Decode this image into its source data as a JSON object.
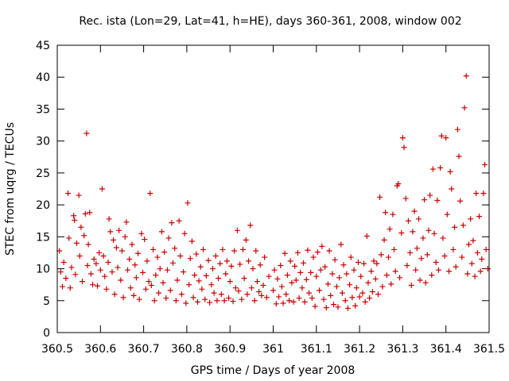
{
  "chart_data": {
    "type": "scatter",
    "title": "Rec. ista (Lon=29, Lat=41, h=HE), days 360-361, 2008, window 002",
    "xlabel": "GPS time / Days of year 2008",
    "ylabel": "STEC from uqrg / TECUs",
    "xlim": [
      360.5,
      361.5
    ],
    "ylim": [
      0,
      45
    ],
    "xticks": [
      "360.5",
      "360.6",
      "360.7",
      "360.8",
      "360.9",
      "361",
      "361.1",
      "361.2",
      "361.3",
      "361.4",
      "361.5"
    ],
    "yticks": [
      "0",
      "5",
      "10",
      "15",
      "20",
      "25",
      "30",
      "35",
      "40",
      "45"
    ],
    "grid": false,
    "legend": "none",
    "marker": "plus",
    "color": "#cc0000",
    "series": [
      {
        "points": [
          [
            360.505,
            12.8
          ],
          [
            360.508,
            9.5
          ],
          [
            360.512,
            7.2
          ],
          [
            360.515,
            11.0
          ],
          [
            360.52,
            8.5
          ],
          [
            360.525,
            21.8
          ],
          [
            360.527,
            14.8
          ],
          [
            360.53,
            7.0
          ],
          [
            360.533,
            10.2
          ],
          [
            360.538,
            18.3
          ],
          [
            360.54,
            17.6
          ],
          [
            360.542,
            9.1
          ],
          [
            360.545,
            14.0
          ],
          [
            360.55,
            21.5
          ],
          [
            360.552,
            12.0
          ],
          [
            360.555,
            16.5
          ],
          [
            360.558,
            8.0
          ],
          [
            360.562,
            15.2
          ],
          [
            360.565,
            18.6
          ],
          [
            360.568,
            31.2
          ],
          [
            360.57,
            10.5
          ],
          [
            360.572,
            13.8
          ],
          [
            360.575,
            18.8
          ],
          [
            360.578,
            9.2
          ],
          [
            360.582,
            7.5
          ],
          [
            360.585,
            11.5
          ],
          [
            360.59,
            10.8
          ],
          [
            360.593,
            7.3
          ],
          [
            360.597,
            12.5
          ],
          [
            360.6,
            9.8
          ],
          [
            360.604,
            22.5
          ],
          [
            360.607,
            12.0
          ],
          [
            360.61,
            8.8
          ],
          [
            360.614,
            6.8
          ],
          [
            360.618,
            11.0
          ],
          [
            360.62,
            17.8
          ],
          [
            360.623,
            15.8
          ],
          [
            360.627,
            9.5
          ],
          [
            360.63,
            14.5
          ],
          [
            360.633,
            6.0
          ],
          [
            360.637,
            13.3
          ],
          [
            360.64,
            10.2
          ],
          [
            360.643,
            16.0
          ],
          [
            360.647,
            8.2
          ],
          [
            360.65,
            12.8
          ],
          [
            360.653,
            5.5
          ],
          [
            360.657,
            15.0
          ],
          [
            360.66,
            17.3
          ],
          [
            360.663,
            9.8
          ],
          [
            360.667,
            11.5
          ],
          [
            360.67,
            7.0
          ],
          [
            360.673,
            13.8
          ],
          [
            360.677,
            5.8
          ],
          [
            360.68,
            10.6
          ],
          [
            360.683,
            8.6
          ],
          [
            360.687,
            12.4
          ],
          [
            360.69,
            5.2
          ],
          [
            360.695,
            15.5
          ],
          [
            360.698,
            9.4
          ],
          [
            360.702,
            14.6
          ],
          [
            360.705,
            6.8
          ],
          [
            360.708,
            11.2
          ],
          [
            360.712,
            8.0
          ],
          [
            360.715,
            21.8
          ],
          [
            360.718,
            7.4
          ],
          [
            360.722,
            13.0
          ],
          [
            360.725,
            5.0
          ],
          [
            360.728,
            9.0
          ],
          [
            360.732,
            11.8
          ],
          [
            360.735,
            6.2
          ],
          [
            360.738,
            10.0
          ],
          [
            360.742,
            15.8
          ],
          [
            360.745,
            7.8
          ],
          [
            360.748,
            12.6
          ],
          [
            360.752,
            5.4
          ],
          [
            360.755,
            9.8
          ],
          [
            360.758,
            14.8
          ],
          [
            360.762,
            6.6
          ],
          [
            360.765,
            17.2
          ],
          [
            360.768,
            10.9
          ],
          [
            360.772,
            13.2
          ],
          [
            360.775,
            5.0
          ],
          [
            360.778,
            8.2
          ],
          [
            360.782,
            17.5
          ],
          [
            360.785,
            12.0
          ],
          [
            360.788,
            6.0
          ],
          [
            360.792,
            9.5
          ],
          [
            360.795,
            15.5
          ],
          [
            360.798,
            4.6
          ],
          [
            360.802,
            20.3
          ],
          [
            360.805,
            7.5
          ],
          [
            360.808,
            11.6
          ],
          [
            360.812,
            14.3
          ],
          [
            360.815,
            5.5
          ],
          [
            360.818,
            9.0
          ],
          [
            360.822,
            12.3
          ],
          [
            360.825,
            4.8
          ],
          [
            360.828,
            8.1
          ],
          [
            360.832,
            10.3
          ],
          [
            360.835,
            6.8
          ],
          [
            360.838,
            13.0
          ],
          [
            360.842,
            5.2
          ],
          [
            360.845,
            8.9
          ],
          [
            360.85,
            11.3
          ],
          [
            360.853,
            4.7
          ],
          [
            360.857,
            7.5
          ],
          [
            360.86,
            10.0
          ],
          [
            360.863,
            6.2
          ],
          [
            360.867,
            12.0
          ],
          [
            360.87,
            5.0
          ],
          [
            360.873,
            8.5
          ],
          [
            360.877,
            10.8
          ],
          [
            360.88,
            6.0
          ],
          [
            360.883,
            13.0
          ],
          [
            360.887,
            5.0
          ],
          [
            360.89,
            9.2
          ],
          [
            360.893,
            11.2
          ],
          [
            360.897,
            5.4
          ],
          [
            360.9,
            8.0
          ],
          [
            360.903,
            10.4
          ],
          [
            360.907,
            4.9
          ],
          [
            360.91,
            12.8
          ],
          [
            360.913,
            7.0
          ],
          [
            360.917,
            16.0
          ],
          [
            360.92,
            6.5
          ],
          [
            360.923,
            10.7
          ],
          [
            360.927,
            5.2
          ],
          [
            360.93,
            13.0
          ],
          [
            360.933,
            8.5
          ],
          [
            360.937,
            14.5
          ],
          [
            360.94,
            6.0
          ],
          [
            360.943,
            11.2
          ],
          [
            360.947,
            16.8
          ],
          [
            360.95,
            7.0
          ],
          [
            360.953,
            10.0
          ],
          [
            360.957,
            5.0
          ],
          [
            360.96,
            12.8
          ],
          [
            360.963,
            8.0
          ],
          [
            360.967,
            6.4
          ],
          [
            360.97,
            10.6
          ],
          [
            360.973,
            5.8
          ],
          [
            360.977,
            7.4
          ],
          [
            360.98,
            11.8
          ],
          [
            360.985,
            5.5
          ],
          [
            360.99,
            8.8
          ],
          [
            361.0,
            6.6
          ],
          [
            361.003,
            9.8
          ],
          [
            361.007,
            4.5
          ],
          [
            361.01,
            8.4
          ],
          [
            361.013,
            5.6
          ],
          [
            361.017,
            10.5
          ],
          [
            361.02,
            7.2
          ],
          [
            361.023,
            4.6
          ],
          [
            361.027,
            12.4
          ],
          [
            361.03,
            6.0
          ],
          [
            361.033,
            9.0
          ],
          [
            361.037,
            5.0
          ],
          [
            361.04,
            11.2
          ],
          [
            361.043,
            7.8
          ],
          [
            361.047,
            4.8
          ],
          [
            361.05,
            10.4
          ],
          [
            361.053,
            8.2
          ],
          [
            361.057,
            12.5
          ],
          [
            361.06,
            5.4
          ],
          [
            361.063,
            9.4
          ],
          [
            361.067,
            7.0
          ],
          [
            361.07,
            10.9
          ],
          [
            361.073,
            4.8
          ],
          [
            361.077,
            8.3
          ],
          [
            361.08,
            12.9
          ],
          [
            361.083,
            6.2
          ],
          [
            361.087,
            9.4
          ],
          [
            361.09,
            5.4
          ],
          [
            361.093,
            11.8
          ],
          [
            361.097,
            4.1
          ],
          [
            361.1,
            8.8
          ],
          [
            361.103,
            12.6
          ],
          [
            361.107,
            6.6
          ],
          [
            361.11,
            9.8
          ],
          [
            361.113,
            13.5
          ],
          [
            361.117,
            5.2
          ],
          [
            361.12,
            10.3
          ],
          [
            361.123,
            3.9
          ],
          [
            361.127,
            7.6
          ],
          [
            361.13,
            12.8
          ],
          [
            361.133,
            5.8
          ],
          [
            361.137,
            9.2
          ],
          [
            361.14,
            4.4
          ],
          [
            361.143,
            11.4
          ],
          [
            361.147,
            7.2
          ],
          [
            361.15,
            4.0
          ],
          [
            361.153,
            8.6
          ],
          [
            361.157,
            13.8
          ],
          [
            361.16,
            6.2
          ],
          [
            361.163,
            10.6
          ],
          [
            361.167,
            5.0
          ],
          [
            361.17,
            9.2
          ],
          [
            361.173,
            3.8
          ],
          [
            361.177,
            7.5
          ],
          [
            361.18,
            11.8
          ],
          [
            361.183,
            5.5
          ],
          [
            361.187,
            9.8
          ],
          [
            361.19,
            4.2
          ],
          [
            361.193,
            7.0
          ],
          [
            361.197,
            11.0
          ],
          [
            361.2,
            5.6
          ],
          [
            361.203,
            8.8
          ],
          [
            361.207,
            6.2
          ],
          [
            361.21,
            10.8
          ],
          [
            361.213,
            4.8
          ],
          [
            361.217,
            15.1
          ],
          [
            361.22,
            7.8
          ],
          [
            361.223,
            5.4
          ],
          [
            361.227,
            9.6
          ],
          [
            361.23,
            6.4
          ],
          [
            361.233,
            11.2
          ],
          [
            361.237,
            8.4
          ],
          [
            361.24,
            10.8
          ],
          [
            361.243,
            6.0
          ],
          [
            361.247,
            21.2
          ],
          [
            361.25,
            12.2
          ],
          [
            361.253,
            7.2
          ],
          [
            361.257,
            14.5
          ],
          [
            361.26,
            18.8
          ],
          [
            361.263,
            9.0
          ],
          [
            361.267,
            11.8
          ],
          [
            361.27,
            16.2
          ],
          [
            361.273,
            7.6
          ],
          [
            361.277,
            18.5
          ],
          [
            361.28,
            13.0
          ],
          [
            361.283,
            9.6
          ],
          [
            361.287,
            23.0
          ],
          [
            361.29,
            23.3
          ],
          [
            361.293,
            8.6
          ],
          [
            361.297,
            15.6
          ],
          [
            361.3,
            30.5
          ],
          [
            361.303,
            29.0
          ],
          [
            361.307,
            21.0
          ],
          [
            361.31,
            10.5
          ],
          [
            361.313,
            17.5
          ],
          [
            361.317,
            12.5
          ],
          [
            361.32,
            7.4
          ],
          [
            361.323,
            15.8
          ],
          [
            361.327,
            19.0
          ],
          [
            361.33,
            9.8
          ],
          [
            361.333,
            13.2
          ],
          [
            361.337,
            17.8
          ],
          [
            361.34,
            8.2
          ],
          [
            361.343,
            11.6
          ],
          [
            361.347,
            14.8
          ],
          [
            361.35,
            20.8
          ],
          [
            361.353,
            7.8
          ],
          [
            361.357,
            12.2
          ],
          [
            361.36,
            16.0
          ],
          [
            361.363,
            21.5
          ],
          [
            361.367,
            9.0
          ],
          [
            361.37,
            25.6
          ],
          [
            361.373,
            15.5
          ],
          [
            361.377,
            11.0
          ],
          [
            361.38,
            20.7
          ],
          [
            361.383,
            9.8
          ],
          [
            361.387,
            25.8
          ],
          [
            361.39,
            30.8
          ],
          [
            361.393,
            14.8
          ],
          [
            361.397,
            12.0
          ],
          [
            361.4,
            30.5
          ],
          [
            361.403,
            18.5
          ],
          [
            361.407,
            9.6
          ],
          [
            361.41,
            25.2
          ],
          [
            361.413,
            22.5
          ],
          [
            361.417,
            13.0
          ],
          [
            361.42,
            16.5
          ],
          [
            361.423,
            10.3
          ],
          [
            361.427,
            31.8
          ],
          [
            361.43,
            27.6
          ],
          [
            361.433,
            20.6
          ],
          [
            361.437,
            11.8
          ],
          [
            361.44,
            16.8
          ],
          [
            361.443,
            35.2
          ],
          [
            361.447,
            40.2
          ],
          [
            361.45,
            9.2
          ],
          [
            361.453,
            13.8
          ],
          [
            361.457,
            17.8
          ],
          [
            361.46,
            10.8
          ],
          [
            361.463,
            14.4
          ],
          [
            361.467,
            8.8
          ],
          [
            361.47,
            21.8
          ],
          [
            361.473,
            12.5
          ],
          [
            361.477,
            18.2
          ],
          [
            361.48,
            9.6
          ],
          [
            361.483,
            11.5
          ],
          [
            361.487,
            21.8
          ],
          [
            361.49,
            26.3
          ],
          [
            361.493,
            13.0
          ],
          [
            361.497,
            10.0
          ]
        ]
      }
    ]
  }
}
